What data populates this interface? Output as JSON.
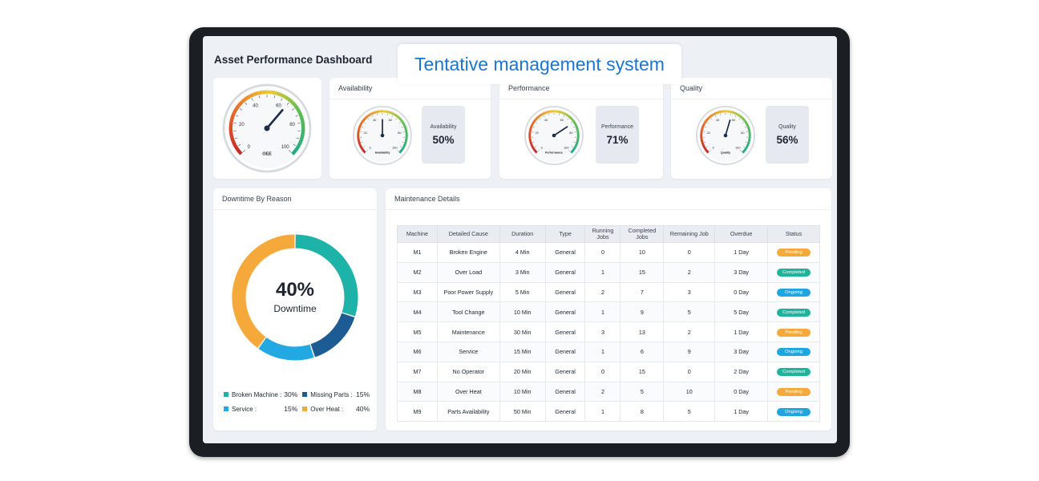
{
  "overlay": {
    "text": "Tentative management system"
  },
  "dashboard": {
    "title": "Asset Performance Dashboard"
  },
  "oee_gauge": {
    "label": "OEE",
    "ticks": [
      "0",
      "20",
      "40",
      "60",
      "80",
      "100"
    ],
    "value": 65
  },
  "metrics": [
    {
      "key": "availability",
      "title": "Availability",
      "gauge_label": "Availability",
      "box_label": "Availability",
      "value_text": "50%",
      "value": 50,
      "ticks": [
        "0",
        "20",
        "40",
        "60",
        "80",
        "100"
      ]
    },
    {
      "key": "performance",
      "title": "Performance",
      "gauge_label": "Performance",
      "box_label": "Performance",
      "value_text": "71%",
      "value": 71,
      "ticks": [
        "0",
        "20",
        "40",
        "60",
        "80",
        "100"
      ]
    },
    {
      "key": "quality",
      "title": "Quality",
      "gauge_label": "Quality",
      "box_label": "Quality",
      "value_text": "56%",
      "value": 56,
      "ticks": [
        "0",
        "20",
        "40",
        "60",
        "80",
        "100"
      ]
    }
  ],
  "downtime": {
    "title": "Downtime By Reason",
    "center_value": "40%",
    "center_label": "Downtime",
    "segments": [
      {
        "name": "Broken Machine :",
        "value_text": "30%",
        "value": 30,
        "color": "#1eb3a8"
      },
      {
        "name": "Missing Parts :",
        "value_text": "15%",
        "value": 15,
        "color": "#1d5b94"
      },
      {
        "name": "Service :",
        "value_text": "15%",
        "value": 15,
        "color": "#22a8e3"
      },
      {
        "name": "Over Heat :",
        "value_text": "40%",
        "value": 40,
        "color": "#f4a93a"
      }
    ]
  },
  "maintenance": {
    "title": "Maintenance Details",
    "columns": [
      "Machine",
      "Detailed Cause",
      "Duration",
      "Type",
      "Running Jobs",
      "Completed Jobs",
      "Remaining Job",
      "Overdue",
      "Status"
    ],
    "rows": [
      [
        "M1",
        "Broken Engine",
        "4 Min",
        "General",
        "0",
        "10",
        "0",
        "1 Day",
        "Pending"
      ],
      [
        "M2",
        "Over Load",
        "3 Min",
        "General",
        "1",
        "15",
        "2",
        "3 Day",
        "Completed"
      ],
      [
        "M3",
        "Poor Power Supply",
        "5 Min",
        "General",
        "2",
        "7",
        "3",
        "0 Day",
        "Ongoing"
      ],
      [
        "M4",
        "Tool Change",
        "10 Min",
        "General",
        "1",
        "9",
        "5",
        "5 Day",
        "Completed"
      ],
      [
        "M5",
        "Maintenance",
        "30 Min",
        "General",
        "3",
        "13",
        "2",
        "1 Day",
        "Pending"
      ],
      [
        "M6",
        "Service",
        "15 Min",
        "General",
        "1",
        "6",
        "9",
        "3 Day",
        "Ongoing"
      ],
      [
        "M7",
        "No Operator",
        "20 Min",
        "General",
        "0",
        "15",
        "0",
        "2 Day",
        "Completed"
      ],
      [
        "M8",
        "Over Heat",
        "10 Min",
        "General",
        "2",
        "5",
        "10",
        "0 Day",
        "Pending"
      ],
      [
        "M9",
        "Parts Availability",
        "50 Min",
        "General",
        "1",
        "8",
        "5",
        "1 Day",
        "Ongoing"
      ]
    ]
  },
  "colors": {
    "pending": "#f4a93a",
    "completed": "#1eb39b",
    "ongoing": "#1da6e0",
    "text": "#1e2430"
  }
}
